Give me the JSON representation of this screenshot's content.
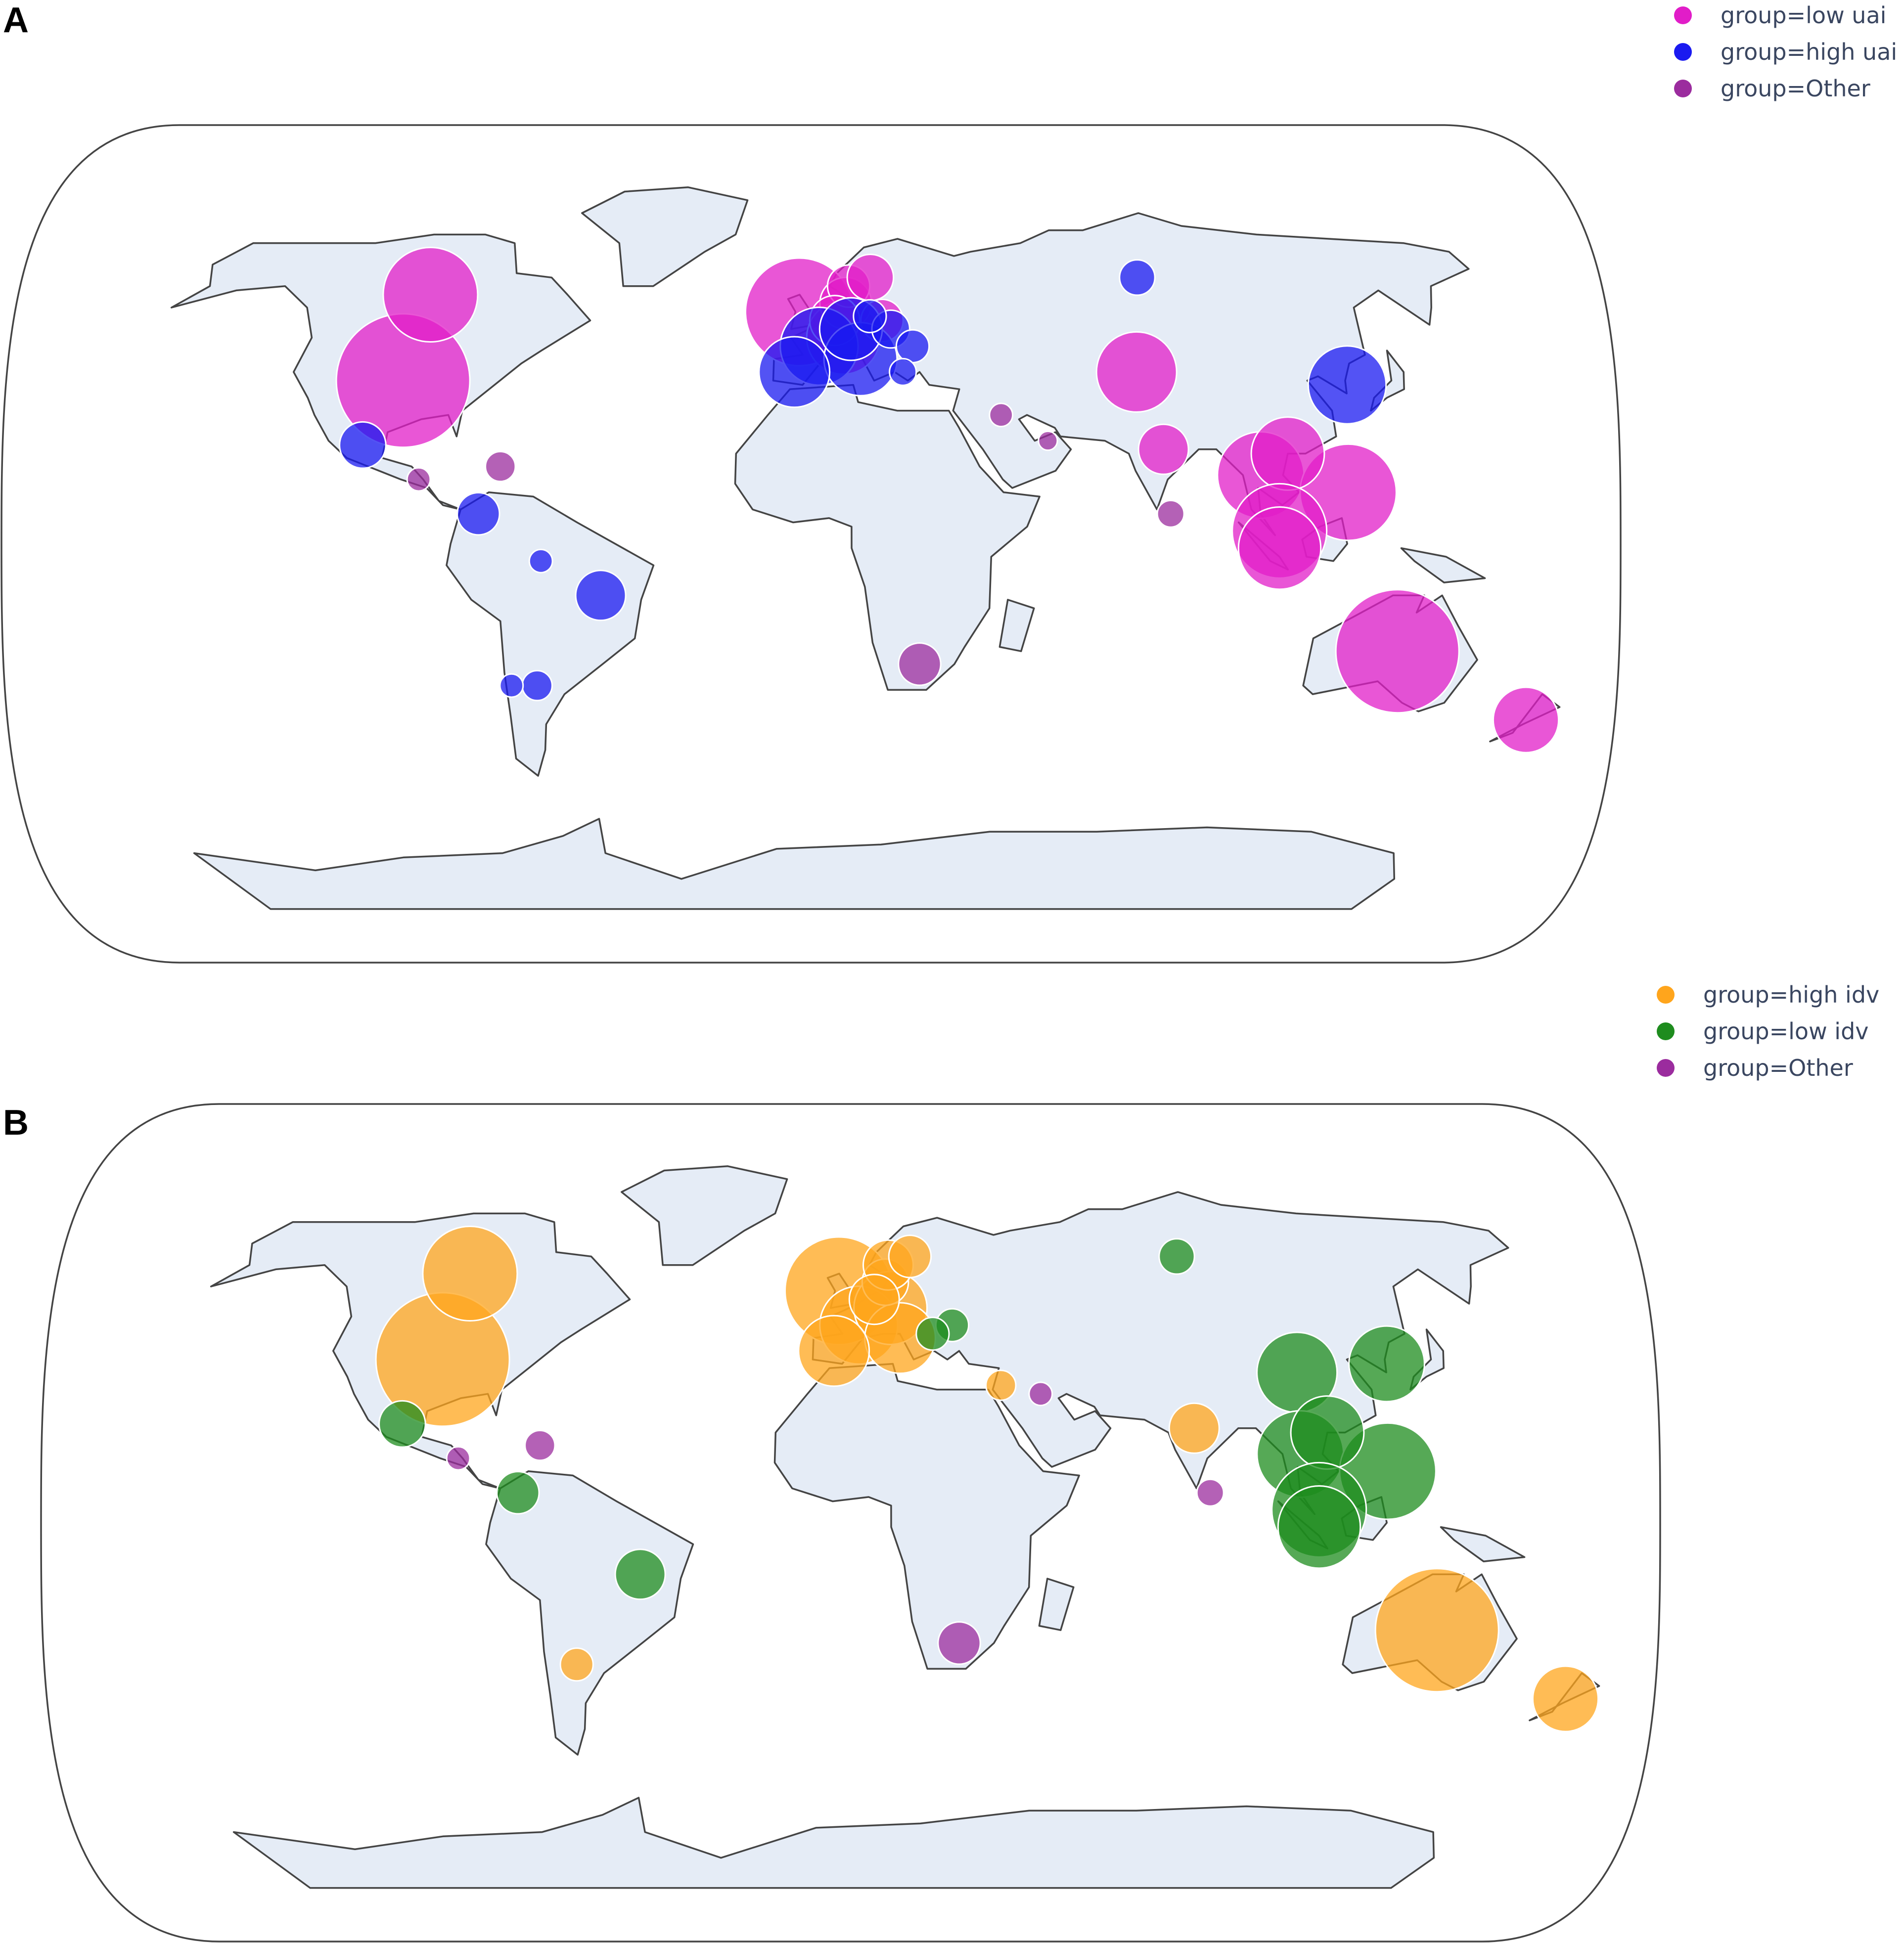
{
  "colors": {
    "low_uai": "#E11DC8",
    "high_uai": "#1A1AF0",
    "other": "#9B2C9E",
    "high_idv": "#FFA51C",
    "low_idv": "#1E8C1E",
    "land": "#e5ecf6"
  },
  "panels": [
    {
      "label": "A",
      "legend": [
        {
          "text": "group=low uai",
          "color_key": "low_uai"
        },
        {
          "text": "group=high uai",
          "color_key": "high_uai"
        },
        {
          "text": "group=Other",
          "color_key": "other"
        }
      ]
    },
    {
      "label": "B",
      "legend": [
        {
          "text": "group=high idv",
          "color_key": "high_idv"
        },
        {
          "text": "group=low idv",
          "color_key": "low_idv"
        },
        {
          "text": "group=Other",
          "color_key": "other"
        }
      ]
    }
  ],
  "chart_data": [
    {
      "type": "scatter",
      "projection": "natural earth",
      "panel": "A",
      "legend_placement": "top-right",
      "series": [
        {
          "name": "group=low uai",
          "color_key": "low_uai",
          "points": [
            {
              "lon": -97,
              "lat": 38,
              "size": 1.0
            },
            {
              "lon": -100,
              "lat": 58,
              "size": 0.5
            },
            {
              "lon": -3,
              "lat": 54,
              "size": 0.65
            },
            {
              "lon": 8,
              "lat": 48,
              "size": 0.3
            },
            {
              "lon": 9,
              "lat": 56,
              "size": 0.15
            },
            {
              "lon": 10,
              "lat": 60,
              "size": 0.1
            },
            {
              "lon": 16,
              "lat": 62,
              "size": 0.12
            },
            {
              "lon": 18,
              "lat": 52,
              "size": 0.1
            },
            {
              "lon": 6,
              "lat": 52,
              "size": 0.14
            },
            {
              "lon": 78,
              "lat": 40,
              "size": 0.36
            },
            {
              "lon": 80,
              "lat": 22,
              "size": 0.14
            },
            {
              "lon": 101,
              "lat": 16,
              "size": 0.42
            },
            {
              "lon": 120,
              "lat": 12,
              "size": 0.52
            },
            {
              "lon": 108,
              "lat": 21,
              "size": 0.3
            },
            {
              "lon": 104,
              "lat": 3,
              "size": 0.5
            },
            {
              "lon": 104,
              "lat": -1,
              "size": 0.38
            },
            {
              "lon": 134,
              "lat": -25,
              "size": 0.85
            },
            {
              "lon": 172,
              "lat": -41,
              "size": 0.24
            }
          ]
        },
        {
          "name": "group=high uai",
          "color_key": "high_uai",
          "points": [
            {
              "lon": 2,
              "lat": 46,
              "size": 0.34
            },
            {
              "lon": 12,
              "lat": 43,
              "size": 0.3
            },
            {
              "lon": 10,
              "lat": 50,
              "size": 0.22
            },
            {
              "lon": -4,
              "lat": 40,
              "size": 0.28
            },
            {
              "lon": 127,
              "lat": 37,
              "size": 0.34
            },
            {
              "lon": -47,
              "lat": -12,
              "size": 0.14
            },
            {
              "lon": -102,
              "lat": 23,
              "size": 0.12
            },
            {
              "lon": -74,
              "lat": 7,
              "size": 0.1
            },
            {
              "lon": 88,
              "lat": 62,
              "size": 0.07
            },
            {
              "lon": 20,
              "lat": 50,
              "size": 0.08
            },
            {
              "lon": 25,
              "lat": 46,
              "size": 0.06
            },
            {
              "lon": -64,
              "lat": -33,
              "size": 0.05
            },
            {
              "lon": -70,
              "lat": -33,
              "size": 0.03
            },
            {
              "lon": -60,
              "lat": -4,
              "size": 0.03
            },
            {
              "lon": 22,
              "lat": 40,
              "size": 0.04
            },
            {
              "lon": 15,
              "lat": 53,
              "size": 0.06
            }
          ]
        },
        {
          "name": "group=Other",
          "color_key": "other",
          "points": [
            {
              "lon": 25,
              "lat": -28,
              "size": 0.1
            },
            {
              "lon": -70,
              "lat": 18,
              "size": 0.05
            },
            {
              "lon": 80,
              "lat": 7,
              "size": 0.04
            },
            {
              "lon": -88,
              "lat": 15,
              "size": 0.03
            },
            {
              "lon": 44,
              "lat": 30,
              "size": 0.03
            },
            {
              "lon": 54,
              "lat": 24,
              "size": 0.02
            }
          ]
        }
      ]
    },
    {
      "type": "scatter",
      "projection": "natural earth",
      "panel": "B",
      "legend_placement": "top-right",
      "series": [
        {
          "name": "group=high idv",
          "color_key": "high_idv",
          "points": [
            {
              "lon": -97,
              "lat": 38,
              "size": 1.0
            },
            {
              "lon": -100,
              "lat": 58,
              "size": 0.5
            },
            {
              "lon": -3,
              "lat": 54,
              "size": 0.65
            },
            {
              "lon": 2,
              "lat": 46,
              "size": 0.34
            },
            {
              "lon": 10,
              "lat": 50,
              "size": 0.3
            },
            {
              "lon": 12,
              "lat": 43,
              "size": 0.28
            },
            {
              "lon": -4,
              "lat": 40,
              "size": 0.28
            },
            {
              "lon": 9,
              "lat": 56,
              "size": 0.12
            },
            {
              "lon": 10,
              "lat": 60,
              "size": 0.14
            },
            {
              "lon": 16,
              "lat": 62,
              "size": 0.1
            },
            {
              "lon": 6,
              "lat": 52,
              "size": 0.14
            },
            {
              "lon": 78,
              "lat": 22,
              "size": 0.14
            },
            {
              "lon": 134,
              "lat": -25,
              "size": 0.85
            },
            {
              "lon": 172,
              "lat": -41,
              "size": 0.24
            },
            {
              "lon": -64,
              "lat": -33,
              "size": 0.06
            },
            {
              "lon": 35,
              "lat": 32,
              "size": 0.05
            }
          ]
        },
        {
          "name": "group=low idv",
          "color_key": "low_idv",
          "points": [
            {
              "lon": 105,
              "lat": 35,
              "size": 0.36
            },
            {
              "lon": 127,
              "lat": 37,
              "size": 0.32
            },
            {
              "lon": 101,
              "lat": 16,
              "size": 0.42
            },
            {
              "lon": 120,
              "lat": 12,
              "size": 0.52
            },
            {
              "lon": 108,
              "lat": 21,
              "size": 0.3
            },
            {
              "lon": 104,
              "lat": 3,
              "size": 0.5
            },
            {
              "lon": 104,
              "lat": -1,
              "size": 0.38
            },
            {
              "lon": -47,
              "lat": -12,
              "size": 0.14
            },
            {
              "lon": -102,
              "lat": 23,
              "size": 0.12
            },
            {
              "lon": -74,
              "lat": 7,
              "size": 0.1
            },
            {
              "lon": 88,
              "lat": 62,
              "size": 0.07
            },
            {
              "lon": 25,
              "lat": 46,
              "size": 0.06
            },
            {
              "lon": 20,
              "lat": 44,
              "size": 0.06
            }
          ]
        },
        {
          "name": "group=Other",
          "color_key": "other",
          "points": [
            {
              "lon": 25,
              "lat": -28,
              "size": 0.1
            },
            {
              "lon": -70,
              "lat": 18,
              "size": 0.05
            },
            {
              "lon": 80,
              "lat": 7,
              "size": 0.04
            },
            {
              "lon": -88,
              "lat": 15,
              "size": 0.03
            },
            {
              "lon": 44,
              "lat": 30,
              "size": 0.03
            }
          ]
        }
      ]
    }
  ]
}
